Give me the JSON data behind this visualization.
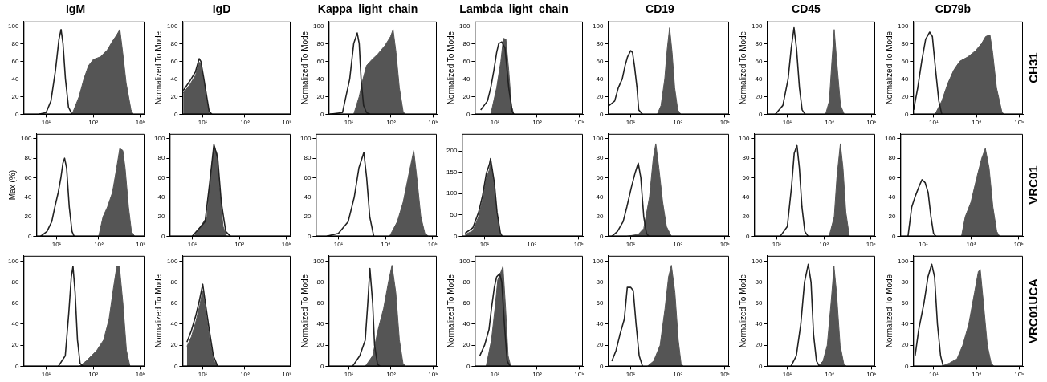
{
  "chart_data": [
    {
      "type": "line",
      "title": "IgM",
      "log": "x",
      "xlim": [
        1.1,
        150000
      ],
      "xticks": [
        {
          "value": 10,
          "label": "10¹"
        },
        {
          "value": 1000,
          "label": "10³"
        },
        {
          "value": 100000,
          "label": "10⁵"
        }
      ],
      "ylim": [
        0,
        105
      ],
      "yticks": [
        0,
        20,
        40,
        60,
        80,
        100
      ],
      "series": [
        {
          "type": "area",
          "color": "#555555",
          "x": [
            126,
            250,
            400,
            630,
            1000,
            2000,
            4000,
            6300,
            10000,
            13500,
            17800,
            25000,
            40000,
            50000
          ],
          "values": [
            0,
            20,
            40,
            55,
            62,
            65,
            73,
            82,
            90,
            96,
            70,
            35,
            5,
            0
          ]
        },
        {
          "type": "line",
          "color": "#222222",
          "x": [
            5,
            10,
            16,
            25,
            35,
            43,
            52,
            66,
            89,
            126
          ],
          "values": [
            0,
            2,
            15,
            50,
            85,
            96,
            80,
            40,
            8,
            0
          ]
        }
      ]
    },
    {
      "type": "line",
      "title": "IgD",
      "ylabel": "Normalized To Mode",
      "log": "x",
      "xlim": [
        1.1,
        150000
      ],
      "xticks": [
        {
          "value": 10,
          "label": "10¹"
        },
        {
          "value": 1000,
          "label": "10³"
        },
        {
          "value": 100000,
          "label": "10⁵"
        }
      ],
      "ylim": [
        0,
        105
      ],
      "yticks": [
        0,
        20,
        40,
        60,
        80,
        100
      ],
      "series": [
        {
          "type": "area",
          "color": "#555555",
          "x": [
            1.2,
            2.5,
            4.5,
            6.8,
            8.1,
            11,
            15,
            20,
            27
          ],
          "values": [
            24,
            34,
            44,
            59,
            56,
            38,
            18,
            2,
            0
          ]
        },
        {
          "type": "line",
          "color": "#222222",
          "x": [
            1.2,
            2.5,
            4.5,
            6.8,
            8.1,
            11,
            15,
            20,
            27
          ],
          "values": [
            27,
            38,
            48,
            63,
            60,
            42,
            22,
            4,
            0
          ]
        }
      ]
    },
    {
      "type": "line",
      "title": "Kappa_light_chain",
      "ylabel": "Normalized To Mode",
      "log": "x",
      "xlim": [
        1.1,
        150000
      ],
      "xticks": [
        {
          "value": 10,
          "label": "10¹"
        },
        {
          "value": 1000,
          "label": "10³"
        },
        {
          "value": 100000,
          "label": "10⁵"
        }
      ],
      "ylim": [
        0,
        105
      ],
      "yticks": [
        0,
        20,
        40,
        60,
        80,
        100
      ],
      "series": [
        {
          "type": "area",
          "color": "#555555",
          "x": [
            17,
            31,
            47,
            69,
            126,
            234,
            525,
            955,
            1260,
            1740,
            2500,
            3800,
            4700
          ],
          "values": [
            0,
            20,
            40,
            55,
            62,
            68,
            78,
            88,
            96,
            70,
            30,
            3,
            0
          ]
        },
        {
          "type": "line",
          "color": "#222222",
          "x": [
            1.26,
            5,
            11,
            17,
            25,
            31,
            38,
            50,
            69,
            100
          ],
          "values": [
            0,
            2,
            40,
            80,
            92,
            80,
            40,
            10,
            2,
            0
          ]
        }
      ]
    },
    {
      "type": "line",
      "title": "Lambda_light_chain",
      "ylabel": "Normalized To Mode",
      "log": "x",
      "xlim": [
        1.1,
        150000
      ],
      "xticks": [
        {
          "value": 10,
          "label": "10¹"
        },
        {
          "value": 1000,
          "label": "10³"
        },
        {
          "value": 100000,
          "label": "10⁵"
        }
      ],
      "ylim": [
        0,
        105
      ],
      "yticks": [
        0,
        20,
        40,
        60,
        80,
        100
      ],
      "series": [
        {
          "type": "area",
          "color": "#555555",
          "x": [
            6.3,
            12,
            19,
            25,
            33,
            45,
            60,
            79
          ],
          "values": [
            0,
            30,
            60,
            86,
            85,
            50,
            10,
            0
          ]
        },
        {
          "type": "line",
          "color": "#222222",
          "x": [
            2.1,
            4.4,
            6.3,
            8.9,
            12,
            15,
            21,
            30,
            45,
            66,
            79
          ],
          "values": [
            5,
            15,
            30,
            50,
            70,
            80,
            82,
            75,
            30,
            3,
            0
          ]
        }
      ]
    },
    {
      "type": "line",
      "title": "CD19",
      "log": "x",
      "xlim": [
        1.1,
        150000
      ],
      "xticks": [
        {
          "value": 10,
          "label": "10¹"
        },
        {
          "value": 1000,
          "label": "10³"
        },
        {
          "value": 100000,
          "label": "10⁵"
        }
      ],
      "ylim": [
        0,
        105
      ],
      "yticks": [
        0,
        20,
        40,
        60,
        80,
        100
      ],
      "series": [
        {
          "type": "area",
          "color": "#555555",
          "x": [
            135,
            195,
            280,
            360,
            450,
            575,
            740,
            1000,
            1350
          ],
          "values": [
            0,
            10,
            40,
            75,
            98,
            70,
            30,
            5,
            0
          ]
        },
        {
          "type": "line",
          "color": "#222222",
          "x": [
            1.23,
            2.1,
            3,
            4.4,
            5.8,
            7.4,
            10,
            12,
            14.5,
            18.6,
            22,
            32
          ],
          "values": [
            10,
            15,
            30,
            40,
            55,
            65,
            72,
            70,
            55,
            30,
            5,
            0
          ]
        }
      ]
    },
    {
      "type": "line",
      "title": "CD45",
      "ylabel": "Normalized To Mode",
      "log": "x",
      "xlim": [
        1.1,
        150000
      ],
      "xticks": [
        {
          "value": 10,
          "label": "10¹"
        },
        {
          "value": 1000,
          "label": "10³"
        },
        {
          "value": 100000,
          "label": "10⁵"
        }
      ],
      "ylim": [
        0,
        105
      ],
      "yticks": [
        0,
        20,
        40,
        60,
        80,
        100
      ],
      "series": [
        {
          "type": "area",
          "color": "#555555",
          "x": [
            660,
            1000,
            1320,
            1700,
            2240,
            3390,
            5130
          ],
          "values": [
            0,
            15,
            60,
            96,
            60,
            10,
            0
          ]
        },
        {
          "type": "line",
          "color": "#222222",
          "x": [
            2.7,
            6.2,
            11,
            15.5,
            21,
            27.5,
            38,
            51,
            71
          ],
          "values": [
            0,
            10,
            40,
            75,
            98,
            75,
            30,
            5,
            0
          ]
        }
      ]
    },
    {
      "type": "line",
      "title": "CD79b",
      "ylabel": "Normalized To Mode",
      "annotations": [
        "CH31"
      ],
      "log": "x",
      "xlim": [
        1.1,
        150000
      ],
      "xticks": [
        {
          "value": 10,
          "label": "10¹"
        },
        {
          "value": 1000,
          "label": "10³"
        },
        {
          "value": 100000,
          "label": "10⁵"
        }
      ],
      "ylim": [
        0,
        105
      ],
      "yticks": [
        0,
        20,
        40,
        60,
        80,
        100
      ],
      "series": [
        {
          "type": "area",
          "color": "#555555",
          "x": [
            11.5,
            24,
            46,
            87,
            166,
            400,
            910,
            1740,
            2700,
            4300,
            5750,
            8700,
            15500,
            19000
          ],
          "values": [
            0,
            15,
            35,
            50,
            60,
            65,
            72,
            80,
            88,
            90,
            70,
            30,
            3,
            0
          ]
        },
        {
          "type": "line",
          "color": "#222222",
          "x": [
            1.15,
            1.8,
            2.75,
            4.2,
            6.5,
            8.7,
            12.3,
            17.4,
            24
          ],
          "values": [
            5,
            30,
            60,
            85,
            93,
            88,
            50,
            15,
            0
          ]
        }
      ]
    },
    {
      "type": "line",
      "ylabel": "Max (%)",
      "log": "x",
      "xlim": [
        1.1,
        150000
      ],
      "xticks": [
        {
          "value": 10,
          "label": "10¹"
        },
        {
          "value": 1000,
          "label": "10³"
        },
        {
          "value": 100000,
          "label": "10⁵"
        }
      ],
      "ylim": [
        0,
        105
      ],
      "yticks": [
        0,
        20,
        40,
        60,
        80,
        100
      ],
      "series": [
        {
          "type": "area",
          "color": "#555555",
          "x": [
            1000,
            1600,
            2600,
            4500,
            7100,
            10000,
            14000,
            18000,
            26000,
            36000,
            51000
          ],
          "values": [
            0,
            20,
            30,
            45,
            70,
            90,
            88,
            70,
            30,
            5,
            0
          ]
        },
        {
          "type": "line",
          "color": "#222222",
          "x": [
            1.74,
            3.5,
            5.9,
            8.3,
            12,
            16,
            20,
            24,
            30,
            40,
            54,
            68
          ],
          "values": [
            0,
            5,
            15,
            30,
            45,
            60,
            75,
            80,
            70,
            30,
            5,
            0
          ]
        }
      ]
    },
    {
      "type": "line",
      "log": "x",
      "xlim": [
        1.1,
        150000
      ],
      "xticks": [
        {
          "value": 10,
          "label": "10¹"
        },
        {
          "value": 1000,
          "label": "10³"
        },
        {
          "value": 100000,
          "label": "10⁵"
        }
      ],
      "ylim": [
        0,
        105
      ],
      "yticks": [
        0,
        20,
        40,
        60,
        80,
        100
      ],
      "series": [
        {
          "type": "area",
          "color": "#555555",
          "x": [
            12,
            42,
            59,
            83,
            112,
            141,
            204,
            288
          ],
          "values": [
            0,
            20,
            60,
            92,
            85,
            50,
            10,
            0
          ]
        },
        {
          "type": "line",
          "color": "#222222",
          "x": [
            10,
            35,
            55,
            83,
            120,
            170,
            263,
            417
          ],
          "values": [
            0,
            15,
            55,
            94,
            80,
            35,
            5,
            0
          ]
        }
      ]
    },
    {
      "type": "line",
      "log": "x",
      "xlim": [
        1.1,
        150000
      ],
      "xticks": [
        {
          "value": 10,
          "label": "10¹"
        },
        {
          "value": 1000,
          "label": "10³"
        },
        {
          "value": 100000,
          "label": "10⁵"
        }
      ],
      "ylim": [
        0,
        105
      ],
      "yticks": [
        0,
        20,
        40,
        60,
        80,
        100
      ],
      "series": [
        {
          "type": "area",
          "color": "#555555",
          "x": [
            1480,
            3160,
            5600,
            10000,
            15800,
            21400,
            31600,
            46800,
            67600
          ],
          "values": [
            0,
            15,
            35,
            65,
            88,
            60,
            20,
            3,
            0
          ]
        },
        {
          "type": "line",
          "color": "#222222",
          "x": [
            3.2,
            10,
            26,
            47,
            74,
            120,
            158,
            214,
            316
          ],
          "values": [
            0,
            3,
            15,
            40,
            70,
            86,
            60,
            20,
            0
          ]
        }
      ]
    },
    {
      "type": "line",
      "log": "x",
      "xlim": [
        1.1,
        150000
      ],
      "xticks": [
        {
          "value": 10,
          "label": "10¹"
        },
        {
          "value": 1000,
          "label": "10³"
        },
        {
          "value": 100000,
          "label": "10⁵"
        }
      ],
      "ylim": [
        0,
        240
      ],
      "yticks": [
        0,
        50,
        100,
        150,
        200
      ],
      "series": [
        {
          "type": "area",
          "color": "#555555",
          "x": [
            1.5,
            3.2,
            5.6,
            8.3,
            12,
            16,
            18,
            26,
            34,
            47,
            56
          ],
          "values": [
            4,
            13,
            46,
            86,
            136,
            156,
            174,
            114,
            46,
            3,
            0
          ]
        },
        {
          "type": "line",
          "color": "#222222",
          "x": [
            1.5,
            3.2,
            5.6,
            8.3,
            12,
            16,
            18,
            26,
            34,
            47,
            56
          ],
          "values": [
            7,
            20,
            56,
            96,
            148,
            168,
            182,
            126,
            56,
            8,
            0
          ]
        }
      ]
    },
    {
      "type": "line",
      "log": "x",
      "xlim": [
        1.1,
        150000
      ],
      "xticks": [
        {
          "value": 10,
          "label": "10¹"
        },
        {
          "value": 1000,
          "label": "10³"
        },
        {
          "value": 100000,
          "label": "10⁵"
        }
      ],
      "ylim": [
        0,
        105
      ],
      "yticks": [
        0,
        20,
        40,
        60,
        80,
        100
      ],
      "series": [
        {
          "type": "area",
          "color": "#555555",
          "x": [
            6.9,
            21,
            36,
            63,
            91,
            117,
            158,
            229,
            331,
            537
          ],
          "values": [
            0,
            2,
            8,
            40,
            80,
            95,
            70,
            35,
            10,
            0
          ]
        },
        {
          "type": "line",
          "color": "#222222",
          "x": [
            1.6,
            2.75,
            4.8,
            6.9,
            10.7,
            15.5,
            21,
            27,
            36,
            47,
            59
          ],
          "values": [
            0,
            5,
            15,
            30,
            50,
            65,
            75,
            60,
            20,
            3,
            0
          ]
        }
      ]
    },
    {
      "type": "line",
      "log": "x",
      "xlim": [
        1.1,
        150000
      ],
      "xticks": [
        {
          "value": 10,
          "label": "10¹"
        },
        {
          "value": 1000,
          "label": "10³"
        },
        {
          "value": 100000,
          "label": "10⁵"
        }
      ],
      "ylim": [
        0,
        105
      ],
      "yticks": [
        0,
        20,
        40,
        60,
        80,
        100
      ],
      "series": [
        {
          "type": "area",
          "color": "#555555",
          "x": [
            1660,
            2750,
            3550,
            5000,
            6460,
            8500,
            12000
          ],
          "values": [
            0,
            20,
            60,
            95,
            70,
            25,
            0
          ]
        },
        {
          "type": "line",
          "color": "#222222",
          "x": [
            14,
            28,
            42,
            55,
            72,
            91,
            117,
            155,
            214
          ],
          "values": [
            0,
            10,
            50,
            85,
            93,
            70,
            30,
            5,
            0
          ]
        }
      ]
    },
    {
      "type": "line",
      "annotations": [
        "VRC01"
      ],
      "log": "x",
      "xlim": [
        1.1,
        150000
      ],
      "xticks": [
        {
          "value": 10,
          "label": "10¹"
        },
        {
          "value": 1000,
          "label": "10³"
        },
        {
          "value": 100000,
          "label": "10⁵"
        }
      ],
      "ylim": [
        0,
        105
      ],
      "yticks": [
        0,
        20,
        40,
        60,
        80,
        100
      ],
      "series": [
        {
          "type": "area",
          "color": "#555555",
          "x": [
            400,
            575,
            1000,
            1740,
            2820,
            4000,
            5750,
            8300,
            12000,
            15800
          ],
          "values": [
            0,
            20,
            35,
            60,
            80,
            90,
            70,
            30,
            5,
            0
          ]
        },
        {
          "type": "line",
          "color": "#222222",
          "x": [
            2.3,
            3.3,
            4.8,
            6.9,
            8.9,
            12,
            16,
            21,
            27,
            34
          ],
          "values": [
            0,
            30,
            42,
            52,
            58,
            55,
            45,
            20,
            3,
            0
          ]
        }
      ]
    },
    {
      "type": "line",
      "log": "x",
      "xlim": [
        1.1,
        150000
      ],
      "xticks": [
        {
          "value": 10,
          "label": "10¹"
        },
        {
          "value": 1000,
          "label": "10³"
        },
        {
          "value": 100000,
          "label": "10⁵"
        }
      ],
      "ylim": [
        0,
        105
      ],
      "yticks": [
        0,
        20,
        40,
        60,
        80,
        100
      ],
      "series": [
        {
          "type": "area",
          "color": "#555555",
          "x": [
            257,
            500,
            1410,
            2750,
            4700,
            7250,
            10000,
            12900,
            18200,
            25700,
            36300
          ],
          "values": [
            0,
            5,
            15,
            25,
            45,
            75,
            95,
            95,
            60,
            15,
            0
          ]
        },
        {
          "type": "line",
          "color": "#222222",
          "x": [
            33,
            65,
            91,
            117,
            138,
            170,
            214,
            275,
            363
          ],
          "values": [
            0,
            10,
            50,
            85,
            95,
            70,
            25,
            3,
            0
          ]
        }
      ]
    },
    {
      "type": "line",
      "ylabel": "Normalized To Mode",
      "log": "x",
      "xlim": [
        1.1,
        150000
      ],
      "xticks": [
        {
          "value": 10,
          "label": "10¹"
        },
        {
          "value": 1000,
          "label": "10³"
        },
        {
          "value": 100000,
          "label": "10⁵"
        }
      ],
      "ylim": [
        0,
        105
      ],
      "yticks": [
        0,
        20,
        40,
        60,
        80,
        100
      ],
      "series": [
        {
          "type": "area",
          "color": "#555555",
          "x": [
            1.78,
            2.9,
            4.8,
            7.2,
            10,
            13.8,
            21,
            32,
            51
          ],
          "values": [
            19,
            28,
            43,
            58,
            72,
            52,
            27,
            6,
            0
          ]
        },
        {
          "type": "line",
          "color": "#222222",
          "x": [
            1.78,
            2.9,
            4.8,
            7.2,
            10,
            13.8,
            21,
            32,
            51
          ],
          "values": [
            23,
            34,
            49,
            64,
            78,
            58,
            33,
            10,
            0
          ]
        }
      ]
    },
    {
      "type": "line",
      "ylabel": "Normalized To Mode",
      "log": "x",
      "xlim": [
        1.1,
        150000
      ],
      "xticks": [
        {
          "value": 10,
          "label": "10¹"
        },
        {
          "value": 1000,
          "label": "10³"
        },
        {
          "value": 100000,
          "label": "10⁵"
        }
      ],
      "ylim": [
        0,
        105
      ],
      "yticks": [
        0,
        20,
        40,
        60,
        80,
        100
      ],
      "series": [
        {
          "type": "area",
          "color": "#555555",
          "x": [
            60,
            135,
            245,
            447,
            759,
            1120,
            1700,
            2510,
            3720,
            5010
          ],
          "values": [
            0,
            10,
            35,
            55,
            80,
            96,
            70,
            25,
            3,
            0
          ]
        },
        {
          "type": "line",
          "color": "#222222",
          "x": [
            15,
            33,
            60,
            79,
            100,
            135,
            166,
            229,
            302
          ],
          "values": [
            0,
            10,
            25,
            60,
            93,
            60,
            20,
            2,
            0
          ]
        }
      ]
    },
    {
      "type": "line",
      "ylabel": "Normalized To Mode",
      "log": "x",
      "xlim": [
        1.1,
        150000
      ],
      "xticks": [
        {
          "value": 10,
          "label": "10¹"
        },
        {
          "value": 1000,
          "label": "10³"
        },
        {
          "value": 100000,
          "label": "10⁵"
        }
      ],
      "ylim": [
        0,
        105
      ],
      "yticks": [
        0,
        20,
        40,
        60,
        80,
        100
      ],
      "series": [
        {
          "type": "area",
          "color": "#555555",
          "x": [
            3.8,
            6.8,
            10,
            13.5,
            17.8,
            24,
            32,
            42,
            56
          ],
          "values": [
            0,
            25,
            55,
            82,
            88,
            95,
            55,
            10,
            0
          ]
        },
        {
          "type": "line",
          "color": "#222222",
          "x": [
            1.9,
            3.2,
            5.2,
            6.8,
            9.3,
            12,
            16.6,
            21,
            28,
            38,
            52
          ],
          "values": [
            10,
            20,
            35,
            55,
            75,
            85,
            88,
            80,
            40,
            5,
            0
          ]
        }
      ]
    },
    {
      "type": "line",
      "log": "x",
      "xlim": [
        1.1,
        150000
      ],
      "xticks": [
        {
          "value": 10,
          "label": "10¹"
        },
        {
          "value": 1000,
          "label": "10³"
        },
        {
          "value": 100000,
          "label": "10⁵"
        }
      ],
      "ylim": [
        0,
        105
      ],
      "yticks": [
        0,
        20,
        40,
        60,
        80,
        100
      ],
      "series": [
        {
          "type": "area",
          "color": "#555555",
          "x": [
            51,
            95,
            178,
            288,
            407,
            537,
            759,
            1050,
            1380,
            1700
          ],
          "values": [
            0,
            5,
            20,
            55,
            85,
            96,
            70,
            25,
            3,
            0
          ]
        },
        {
          "type": "line",
          "color": "#222222",
          "x": [
            1.6,
            2.4,
            3.5,
            5.4,
            7.2,
            10,
            12.9,
            17,
            23,
            32
          ],
          "values": [
            5,
            15,
            30,
            45,
            75,
            75,
            72,
            40,
            10,
            0
          ]
        }
      ]
    },
    {
      "type": "line",
      "ylabel": "Normalized To Mode",
      "log": "x",
      "xlim": [
        1.1,
        150000
      ],
      "xticks": [
        {
          "value": 10,
          "label": "10¹"
        },
        {
          "value": 1000,
          "label": "10³"
        },
        {
          "value": 100000,
          "label": "10⁵"
        }
      ],
      "ylim": [
        0,
        105
      ],
      "yticks": [
        0,
        20,
        40,
        60,
        80,
        100
      ],
      "series": [
        {
          "type": "area",
          "color": "#555555",
          "x": [
            295,
            501,
            794,
            1200,
            1660,
            2190,
            3240,
            4900,
            6460
          ],
          "values": [
            0,
            5,
            20,
            60,
            95,
            70,
            20,
            2,
            0
          ]
        },
        {
          "type": "line",
          "color": "#222222",
          "x": [
            15,
            27,
            44,
            66,
            100,
            135,
            178,
            245,
            339
          ],
          "values": [
            0,
            10,
            40,
            80,
            97,
            80,
            30,
            5,
            0
          ]
        }
      ]
    },
    {
      "type": "line",
      "ylabel": "Normalized To Mode",
      "annotations": [
        "VRC01UCA"
      ],
      "log": "x",
      "xlim": [
        1.1,
        150000
      ],
      "xticks": [
        {
          "value": 10,
          "label": "10¹"
        },
        {
          "value": 1000,
          "label": "10³"
        },
        {
          "value": 100000,
          "label": "10⁵"
        }
      ],
      "ylim": [
        0,
        105
      ],
      "yticks": [
        0,
        20,
        40,
        60,
        80,
        100
      ],
      "series": [
        {
          "type": "area",
          "color": "#555555",
          "x": [
            23,
            54,
            123,
            229,
            437,
            813,
            1230,
            1510,
            2140,
            3240,
            4900,
            6610
          ],
          "values": [
            0,
            3,
            7,
            20,
            40,
            70,
            90,
            92,
            60,
            20,
            3,
            0
          ]
        },
        {
          "type": "line",
          "color": "#222222",
          "x": [
            1.35,
            2,
            3.5,
            5.4,
            8.1,
            11,
            15,
            21,
            28
          ],
          "values": [
            10,
            35,
            60,
            85,
            97,
            85,
            40,
            10,
            0
          ]
        }
      ]
    }
  ]
}
